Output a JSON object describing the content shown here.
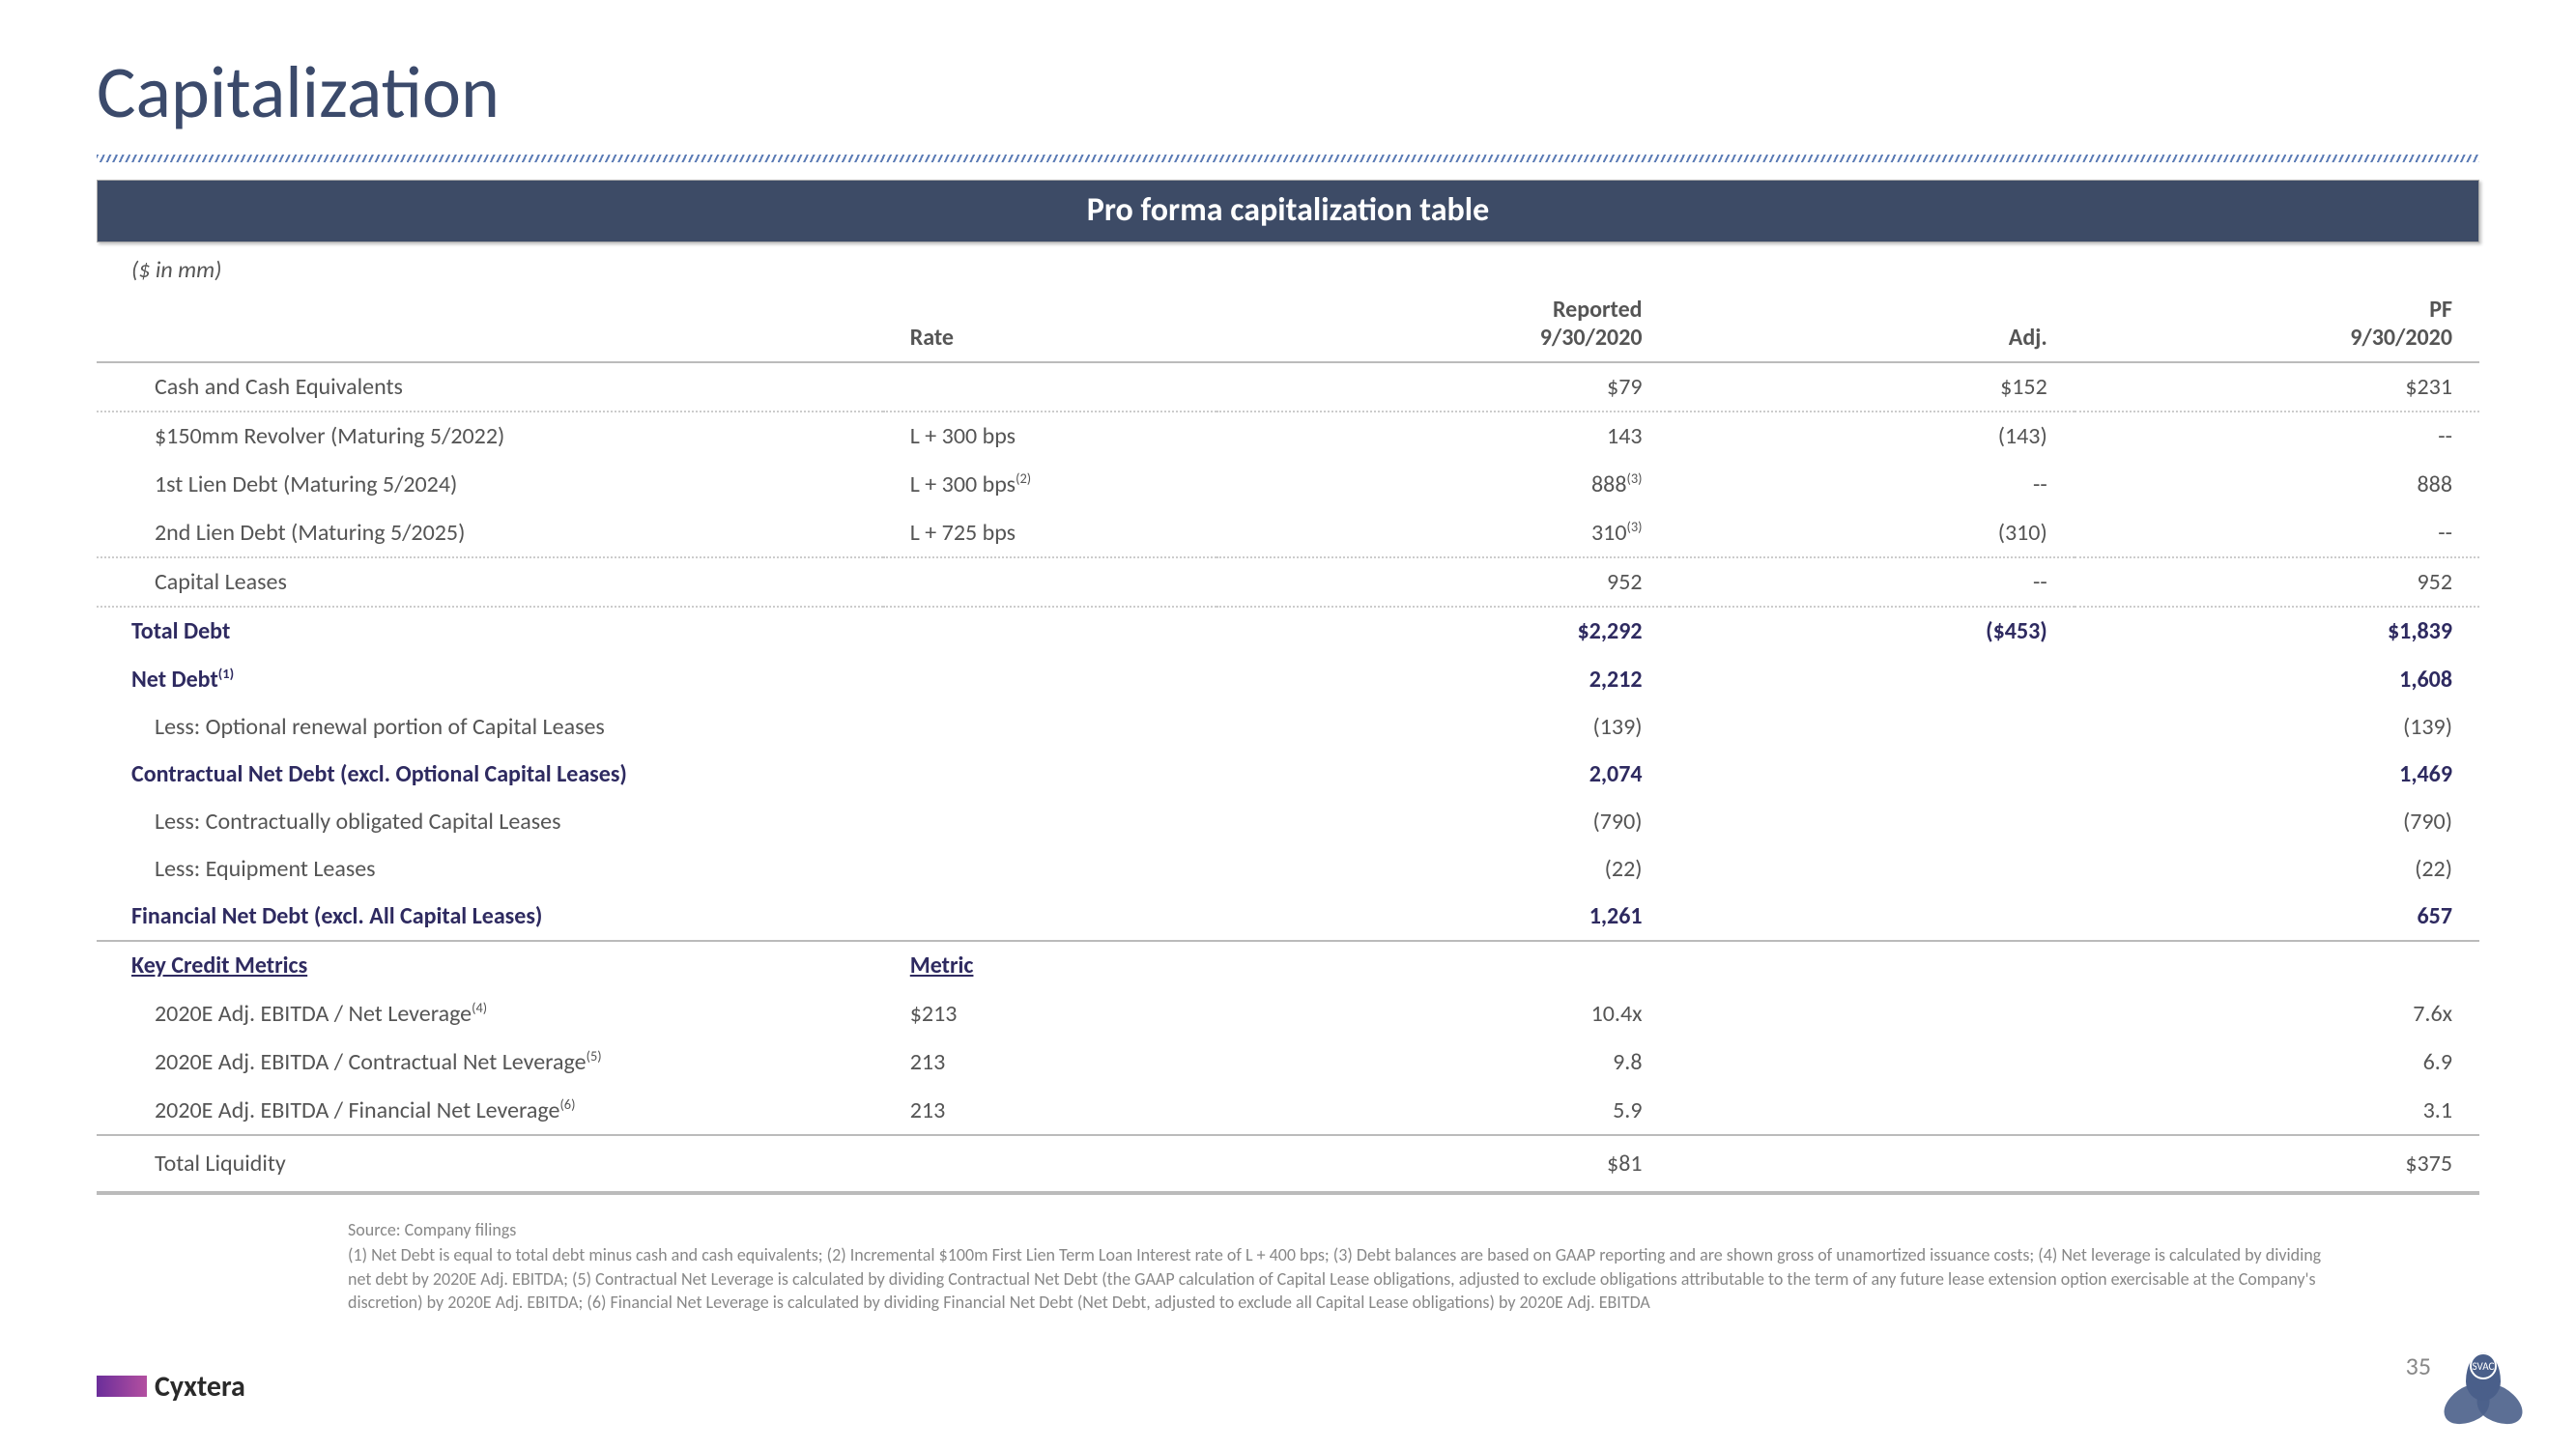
{
  "title": "Capitalization",
  "banner": "Pro forma capitalization table",
  "unit_label": "($ in mm)",
  "columns": {
    "rate": "Rate",
    "reported_top": "Reported",
    "reported_bot": "9/30/2020",
    "adj": "Adj.",
    "pf_top": "PF",
    "pf_bot": "9/30/2020"
  },
  "rows": [
    {
      "label": "Cash and Cash Equivalents",
      "rate": "",
      "reported": "$79",
      "adj": "$152",
      "pf": "$231",
      "style": "dotted"
    },
    {
      "label": "$150mm Revolver (Maturing 5/2022)",
      "rate": "L + 300 bps",
      "reported": "143",
      "adj": "(143)",
      "pf": "--",
      "style": ""
    },
    {
      "label": "1st Lien Debt (Maturing 5/2024)",
      "rate": "L + 300 bps",
      "rate_sup": "(2)",
      "reported": "888",
      "rep_sup": "(3)",
      "adj": "--",
      "pf": "888",
      "style": ""
    },
    {
      "label": "2nd Lien Debt (Maturing 5/2025)",
      "rate": "L + 725 bps",
      "reported": "310",
      "rep_sup": "(3)",
      "adj": "(310)",
      "pf": "--",
      "style": "dotted"
    },
    {
      "label": "Capital Leases",
      "rate": "",
      "reported": "952",
      "adj": "--",
      "pf": "952",
      "style": "dotted"
    },
    {
      "label": "Total Debt",
      "rate": "",
      "reported": "$2,292",
      "adj": "($453)",
      "pf": "$1,839",
      "style": "highlight"
    },
    {
      "label": "Net Debt",
      "label_sup": "(1)",
      "rate": "",
      "reported": "2,212",
      "adj": "",
      "pf": "1,608",
      "style": "highlight"
    },
    {
      "label": "Less: Optional renewal portion of Capital Leases",
      "rate": "",
      "reported": "(139)",
      "adj": "",
      "pf": "(139)",
      "style": "indent"
    },
    {
      "label": "Contractual Net Debt (excl. Optional Capital Leases)",
      "rate": "",
      "reported": "2,074",
      "adj": "",
      "pf": "1,469",
      "style": "highlight"
    },
    {
      "label": "Less: Contractually obligated Capital Leases",
      "rate": "",
      "reported": "(790)",
      "adj": "",
      "pf": "(790)",
      "style": "indent"
    },
    {
      "label": "Less: Equipment Leases",
      "rate": "",
      "reported": "(22)",
      "adj": "",
      "pf": "(22)",
      "style": "indent"
    },
    {
      "label": "Financial Net Debt (excl. All Capital Leases)",
      "rate": "",
      "reported": "1,261",
      "adj": "",
      "pf": "657",
      "style": "highlight section-solid"
    }
  ],
  "metrics_header": {
    "key": "Key Credit Metrics",
    "metric": "Metric"
  },
  "metrics": [
    {
      "label": "2020E Adj. EBITDA / Net Leverage",
      "label_sup": "(4)",
      "metric": "$213",
      "reported": "10.4x",
      "pf": "7.6x"
    },
    {
      "label": "2020E Adj. EBITDA / Contractual Net Leverage",
      "label_sup": "(5)",
      "metric": "213",
      "reported": "9.8",
      "pf": "6.9"
    },
    {
      "label": "2020E Adj. EBITDA / Financial Net Leverage",
      "label_sup": "(6)",
      "metric": "213",
      "reported": "5.9",
      "pf": "3.1"
    }
  ],
  "final_row": {
    "label": "Total Liquidity",
    "reported": "$81",
    "pf": "$375"
  },
  "footnotes": {
    "source": "Source: Company filings",
    "text": "(1) Net Debt is equal to total debt minus cash and cash equivalents; (2) Incremental $100m First Lien Term Loan Interest rate of L + 400 bps; (3) Debt balances are based on GAAP reporting and are shown gross of unamortized issuance costs; (4) Net leverage is calculated by dividing net debt by 2020E Adj. EBITDA; (5) Contractual Net Leverage is calculated by dividing Contractual Net Debt (the GAAP calculation of Capital Lease obligations, adjusted to exclude obligations attributable to the term of any future lease extension option exercisable at the Company's discretion) by 2020E Adj. EBITDA; (6) Financial Net Leverage is calculated by dividing Financial Net Debt (Net Debt, adjusted to exclude all Capital Lease obligations) by 2020E Adj. EBITDA"
  },
  "logo_text": "Cyxtera",
  "page_number": "35",
  "colors": {
    "title": "#3b4a6b",
    "banner_bg": "#3d4b66",
    "highlight_text": "#2e2a60",
    "body_text": "#555555",
    "footnote_text": "#888888",
    "logo_grad_start": "#6b2e9a",
    "logo_grad_end": "#b34fa0",
    "trefoil": "#4a5f8a"
  }
}
